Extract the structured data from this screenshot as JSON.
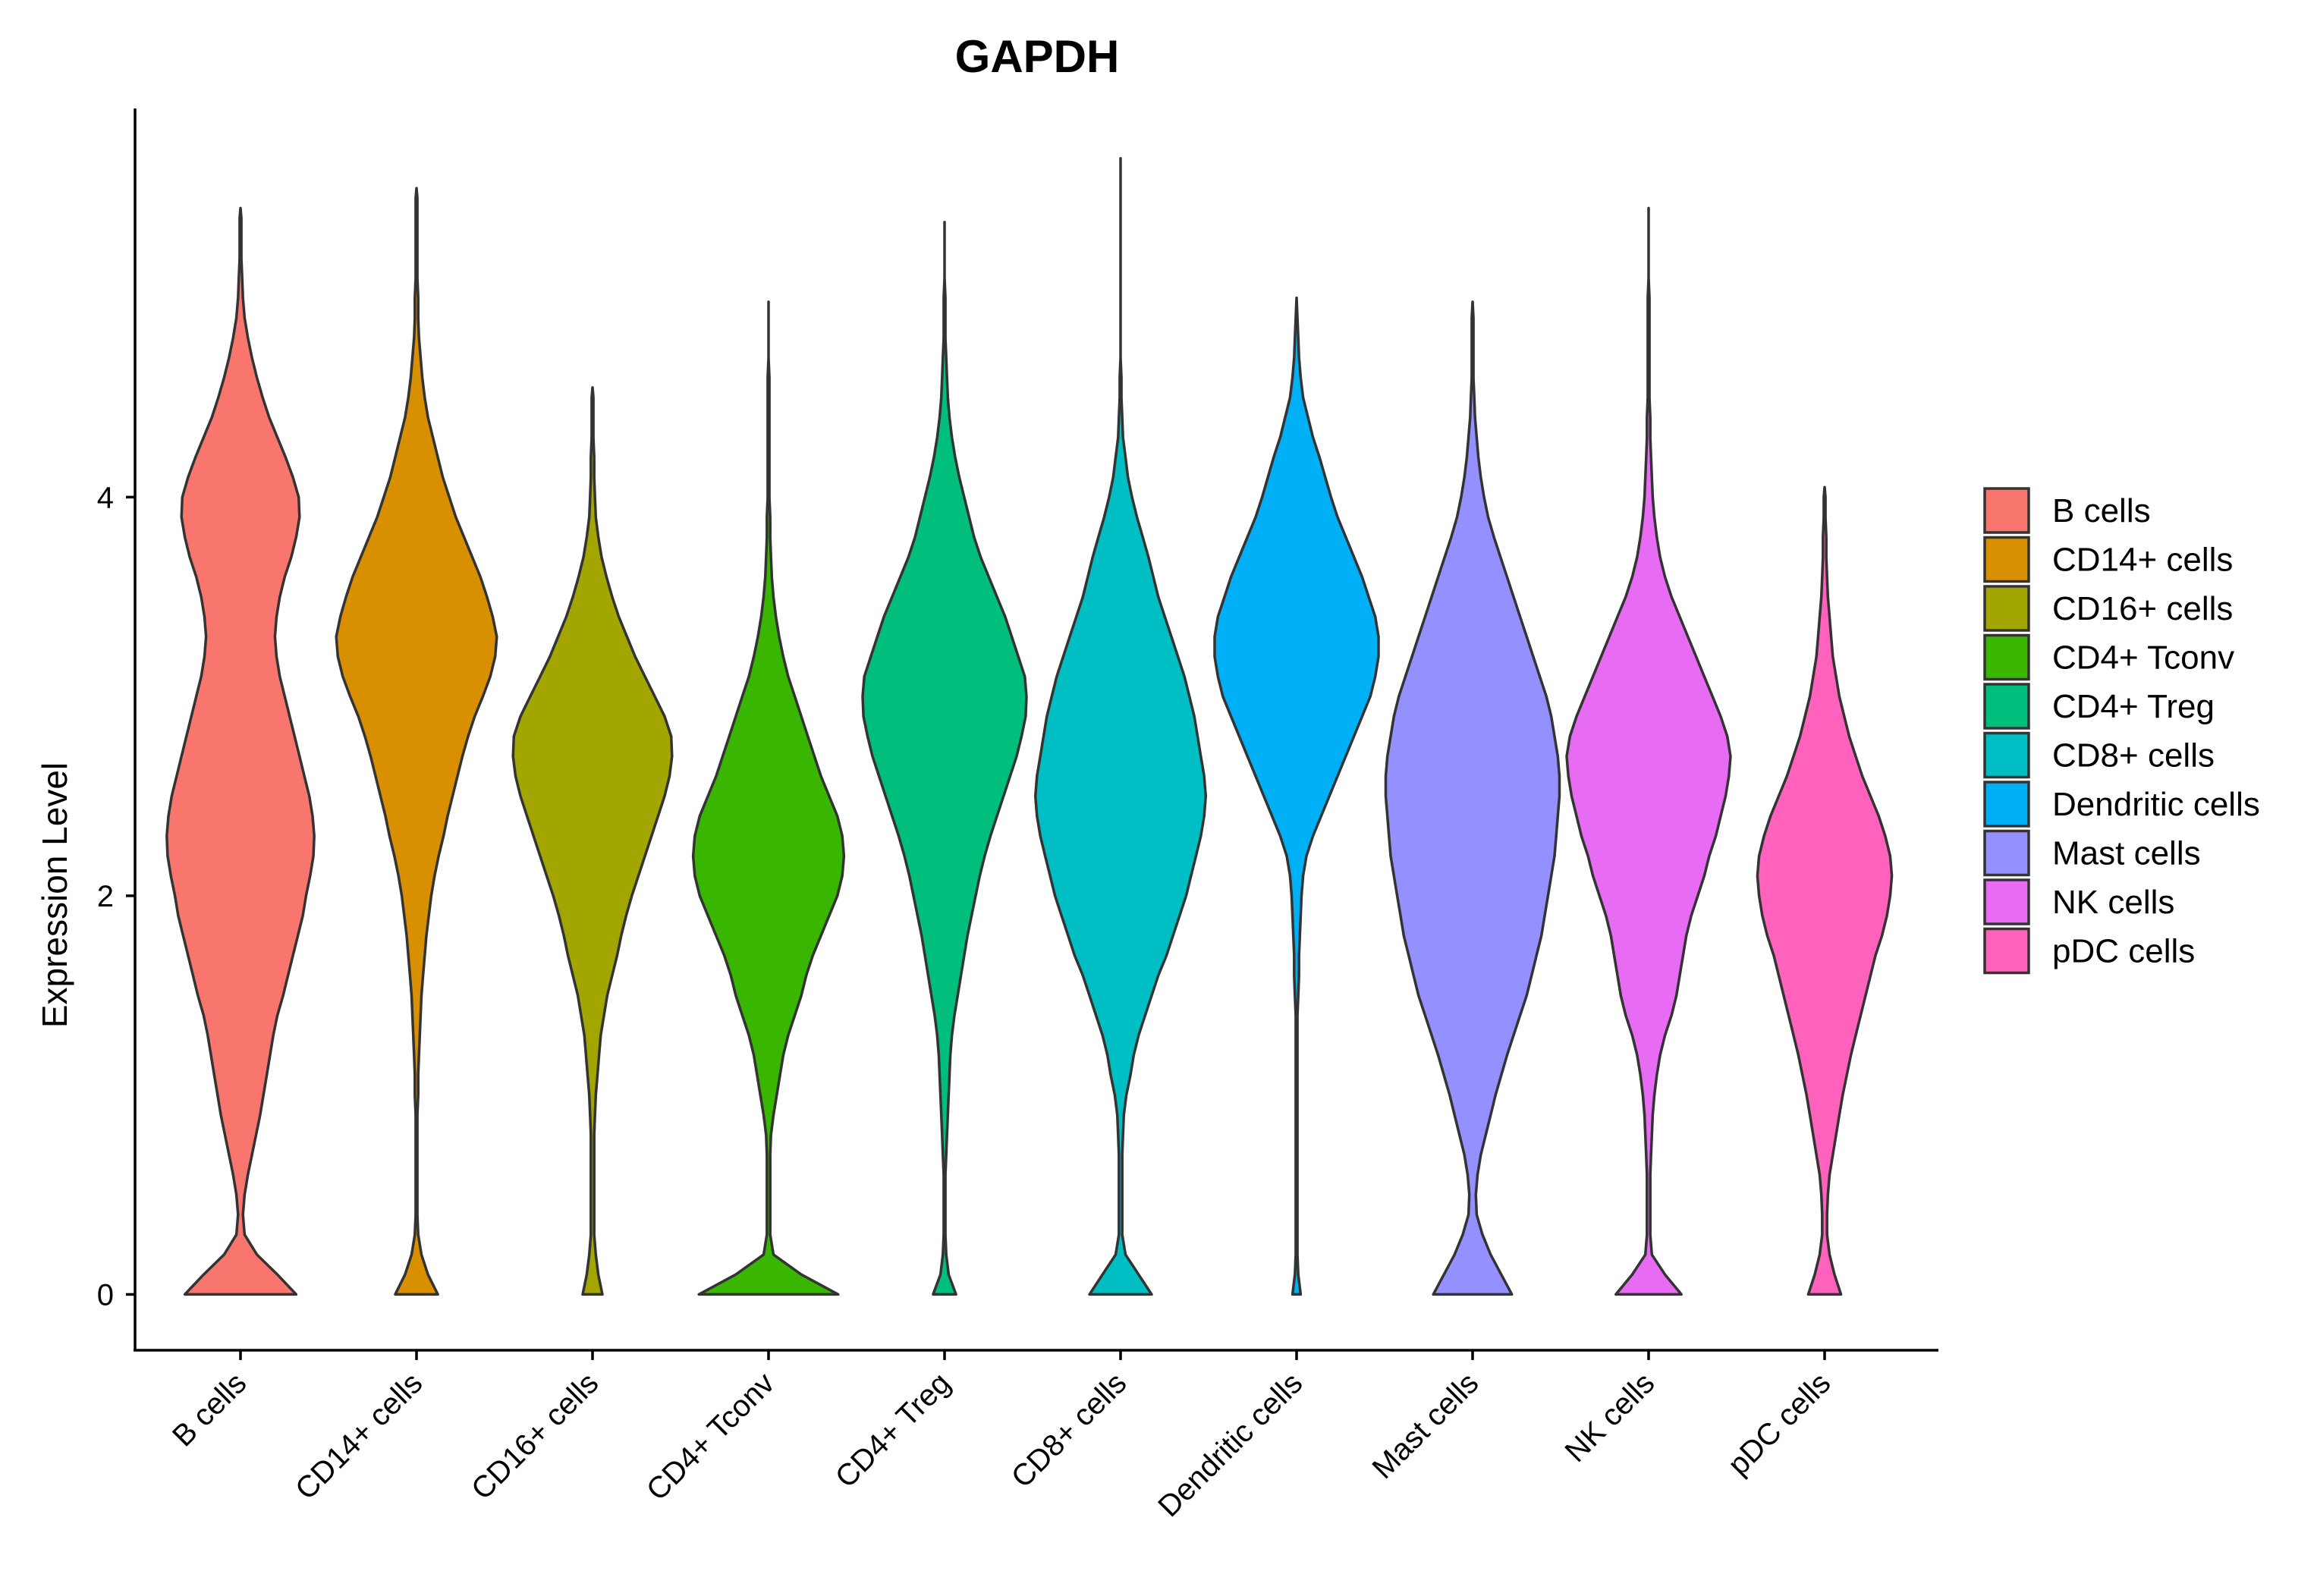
{
  "chart_data": {
    "type": "violin",
    "title": "GAPDH",
    "xlabel": "",
    "ylabel": "Expression Level",
    "ylim": [
      -0.28,
      5.95
    ],
    "yticks": [
      0,
      2,
      4
    ],
    "ytick_labels": [
      "0",
      "2",
      "4"
    ],
    "grid": false,
    "legend_position": "right",
    "categories": [
      "B cells",
      "CD14+ cells",
      "CD16+ cells",
      "CD4+ Tconv",
      "CD4+ Treg",
      "CD8+ cells",
      "Dendritic cells",
      "Mast cells",
      "NK cells",
      "pDC cells"
    ],
    "colors": [
      "#F8766D",
      "#D89000",
      "#A3A500",
      "#39B600",
      "#00BF7D",
      "#00BFC4",
      "#00B0F6",
      "#9590FF",
      "#E76BF3",
      "#FF62BC"
    ],
    "y_grid": [
      0,
      0.1,
      0.2,
      0.3,
      0.4,
      0.5,
      0.6,
      0.7,
      0.8,
      0.9,
      1.0,
      1.1,
      1.2,
      1.3,
      1.4,
      1.5,
      1.6,
      1.7,
      1.8,
      1.9,
      2.0,
      2.1,
      2.2,
      2.3,
      2.4,
      2.5,
      2.6,
      2.7,
      2.8,
      2.9,
      3.0,
      3.1,
      3.2,
      3.3,
      3.4,
      3.5,
      3.6,
      3.7,
      3.8,
      3.9,
      4.0,
      4.1,
      4.2,
      4.3,
      4.4,
      4.5,
      4.6,
      4.7,
      4.8,
      4.9,
      5.0,
      5.1,
      5.2,
      5.3,
      5.4,
      5.5,
      5.6
    ],
    "series": [
      {
        "name": "B cells",
        "max": 5.45,
        "density": [
          0.68,
          0.45,
          0.2,
          0.05,
          0.03,
          0.05,
          0.09,
          0.14,
          0.19,
          0.24,
          0.28,
          0.32,
          0.36,
          0.4,
          0.45,
          0.52,
          0.58,
          0.64,
          0.7,
          0.76,
          0.8,
          0.85,
          0.89,
          0.9,
          0.88,
          0.84,
          0.78,
          0.72,
          0.66,
          0.6,
          0.54,
          0.48,
          0.44,
          0.42,
          0.44,
          0.48,
          0.54,
          0.62,
          0.68,
          0.72,
          0.71,
          0.64,
          0.55,
          0.45,
          0.35,
          0.27,
          0.2,
          0.14,
          0.09,
          0.05,
          0.03,
          0.02,
          0.01,
          0.01,
          0.01,
          0.0,
          0.0
        ]
      },
      {
        "name": "CD14+ cells",
        "max": 5.55,
        "density": [
          0.26,
          0.14,
          0.06,
          0.02,
          0.01,
          0.01,
          0.01,
          0.01,
          0.01,
          0.01,
          0.02,
          0.02,
          0.03,
          0.04,
          0.05,
          0.06,
          0.08,
          0.1,
          0.12,
          0.15,
          0.18,
          0.22,
          0.27,
          0.33,
          0.38,
          0.44,
          0.5,
          0.56,
          0.63,
          0.71,
          0.81,
          0.9,
          0.96,
          0.98,
          0.93,
          0.86,
          0.78,
          0.68,
          0.58,
          0.48,
          0.4,
          0.32,
          0.26,
          0.2,
          0.14,
          0.1,
          0.07,
          0.05,
          0.03,
          0.02,
          0.02,
          0.01,
          0.01,
          0.01,
          0.01,
          0.01,
          0.0
        ]
      },
      {
        "name": "CD16+ cells",
        "max": 4.55,
        "density": [
          0.12,
          0.07,
          0.04,
          0.02,
          0.02,
          0.02,
          0.02,
          0.02,
          0.02,
          0.03,
          0.04,
          0.06,
          0.08,
          0.1,
          0.14,
          0.18,
          0.24,
          0.3,
          0.35,
          0.41,
          0.48,
          0.56,
          0.64,
          0.72,
          0.8,
          0.88,
          0.94,
          0.97,
          0.96,
          0.88,
          0.76,
          0.64,
          0.52,
          0.42,
          0.32,
          0.24,
          0.17,
          0.11,
          0.07,
          0.04,
          0.03,
          0.02,
          0.02,
          0.01,
          0.01,
          0.01,
          0.0,
          0.0,
          0.0,
          0.0,
          0.0,
          0.0,
          0.0,
          0.0,
          0.0,
          0.0,
          0.0
        ]
      },
      {
        "name": "CD4+ Tconv",
        "max": 4.98,
        "density": [
          0.85,
          0.4,
          0.06,
          0.02,
          0.02,
          0.02,
          0.02,
          0.02,
          0.03,
          0.06,
          0.1,
          0.14,
          0.18,
          0.24,
          0.32,
          0.4,
          0.46,
          0.54,
          0.64,
          0.74,
          0.84,
          0.9,
          0.92,
          0.9,
          0.84,
          0.74,
          0.64,
          0.56,
          0.48,
          0.4,
          0.32,
          0.24,
          0.18,
          0.13,
          0.09,
          0.06,
          0.04,
          0.03,
          0.02,
          0.02,
          0.01,
          0.01,
          0.01,
          0.01,
          0.01,
          0.01,
          0.01,
          0.0,
          0.0,
          0.0,
          0.0,
          0.0,
          0.0,
          0.0,
          0.0,
          0.0,
          0.0
        ]
      },
      {
        "name": "CD4+ Treg",
        "max": 5.38,
        "density": [
          0.14,
          0.05,
          0.02,
          0.01,
          0.01,
          0.01,
          0.01,
          0.02,
          0.03,
          0.04,
          0.05,
          0.06,
          0.07,
          0.09,
          0.12,
          0.16,
          0.2,
          0.24,
          0.28,
          0.33,
          0.38,
          0.43,
          0.49,
          0.56,
          0.64,
          0.72,
          0.8,
          0.88,
          0.94,
          0.99,
          1.0,
          0.98,
          0.9,
          0.82,
          0.74,
          0.64,
          0.54,
          0.44,
          0.36,
          0.3,
          0.24,
          0.18,
          0.13,
          0.09,
          0.06,
          0.04,
          0.03,
          0.02,
          0.01,
          0.01,
          0.01,
          0.0,
          0.0,
          0.0,
          0.0,
          0.0,
          0.0
        ]
      },
      {
        "name": "CD8+ cells",
        "max": 5.7,
        "density": [
          0.38,
          0.22,
          0.06,
          0.02,
          0.02,
          0.02,
          0.02,
          0.02,
          0.03,
          0.04,
          0.07,
          0.12,
          0.16,
          0.22,
          0.3,
          0.38,
          0.46,
          0.56,
          0.64,
          0.72,
          0.8,
          0.86,
          0.92,
          0.98,
          1.02,
          1.04,
          1.02,
          0.98,
          0.94,
          0.9,
          0.84,
          0.78,
          0.7,
          0.62,
          0.54,
          0.46,
          0.4,
          0.34,
          0.27,
          0.2,
          0.14,
          0.09,
          0.06,
          0.03,
          0.02,
          0.01,
          0.01,
          0.0,
          0.0,
          0.0,
          0.0,
          0.0,
          0.0,
          0.0,
          0.0,
          0.0,
          0.0
        ]
      },
      {
        "name": "Dendritic cells",
        "max": 5.0,
        "density": [
          0.05,
          0.02,
          0.01,
          0.01,
          0.01,
          0.01,
          0.01,
          0.01,
          0.01,
          0.01,
          0.01,
          0.01,
          0.01,
          0.01,
          0.01,
          0.02,
          0.03,
          0.03,
          0.04,
          0.05,
          0.06,
          0.08,
          0.12,
          0.2,
          0.3,
          0.4,
          0.5,
          0.6,
          0.7,
          0.8,
          0.9,
          0.96,
          1.0,
          1.0,
          0.96,
          0.88,
          0.8,
          0.7,
          0.6,
          0.5,
          0.42,
          0.35,
          0.28,
          0.2,
          0.14,
          0.08,
          0.05,
          0.03,
          0.02,
          0.01,
          0.0,
          0.0,
          0.0,
          0.0,
          0.0,
          0.0,
          0.0
        ]
      },
      {
        "name": "Mast cells",
        "max": 4.98,
        "density": [
          0.48,
          0.35,
          0.22,
          0.12,
          0.05,
          0.04,
          0.06,
          0.1,
          0.16,
          0.22,
          0.28,
          0.35,
          0.42,
          0.5,
          0.58,
          0.66,
          0.72,
          0.78,
          0.84,
          0.88,
          0.92,
          0.96,
          1.0,
          1.02,
          1.04,
          1.06,
          1.06,
          1.04,
          1.0,
          0.96,
          0.9,
          0.82,
          0.74,
          0.66,
          0.58,
          0.5,
          0.42,
          0.34,
          0.26,
          0.19,
          0.14,
          0.1,
          0.07,
          0.05,
          0.03,
          0.02,
          0.01,
          0.01,
          0.01,
          0.01,
          0.0,
          0.0,
          0.0,
          0.0,
          0.0,
          0.0,
          0.0
        ]
      },
      {
        "name": "NK cells",
        "max": 5.45,
        "density": [
          0.4,
          0.2,
          0.04,
          0.02,
          0.02,
          0.02,
          0.02,
          0.03,
          0.04,
          0.05,
          0.07,
          0.1,
          0.14,
          0.2,
          0.28,
          0.34,
          0.38,
          0.42,
          0.46,
          0.52,
          0.6,
          0.68,
          0.74,
          0.82,
          0.88,
          0.94,
          0.98,
          1.0,
          0.96,
          0.88,
          0.78,
          0.68,
          0.58,
          0.48,
          0.38,
          0.28,
          0.2,
          0.14,
          0.1,
          0.07,
          0.05,
          0.04,
          0.03,
          0.02,
          0.02,
          0.01,
          0.01,
          0.01,
          0.01,
          0.01,
          0.01,
          0.0,
          0.0,
          0.0,
          0.0,
          0.0,
          0.0
        ]
      },
      {
        "name": "pDC cells",
        "max": 4.05,
        "density": [
          0.2,
          0.12,
          0.06,
          0.03,
          0.03,
          0.04,
          0.06,
          0.1,
          0.14,
          0.18,
          0.22,
          0.27,
          0.32,
          0.38,
          0.44,
          0.5,
          0.56,
          0.62,
          0.7,
          0.76,
          0.8,
          0.82,
          0.8,
          0.74,
          0.66,
          0.56,
          0.46,
          0.38,
          0.3,
          0.24,
          0.18,
          0.14,
          0.1,
          0.08,
          0.06,
          0.04,
          0.03,
          0.02,
          0.02,
          0.01,
          0.01,
          0.0,
          0.0,
          0.0,
          0.0,
          0.0,
          0.0,
          0.0,
          0.0,
          0.0,
          0.0,
          0.0,
          0.0,
          0.0,
          0.0,
          0.0,
          0.0
        ]
      }
    ]
  }
}
